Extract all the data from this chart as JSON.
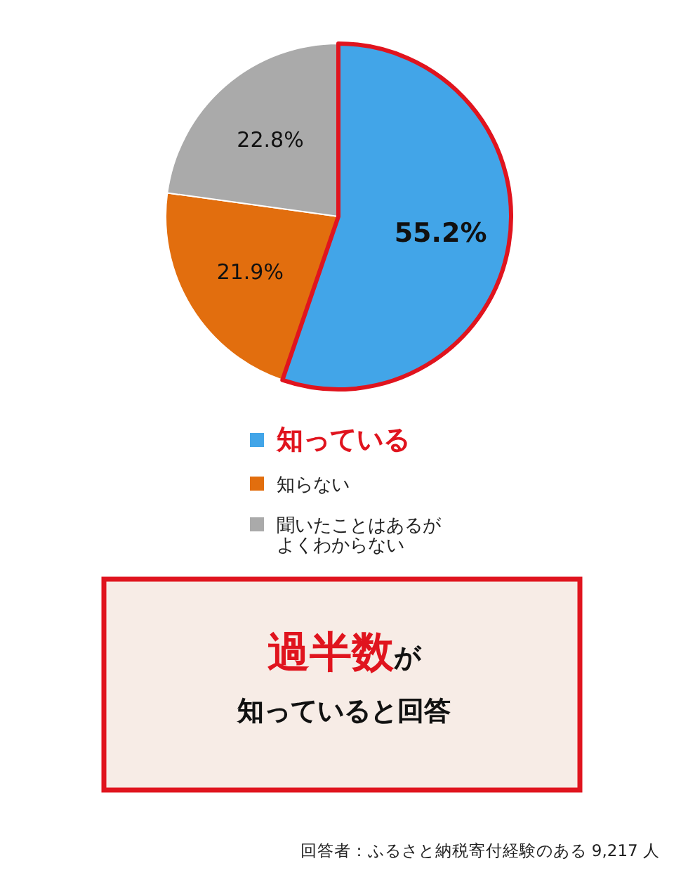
{
  "chart_data": {
    "type": "pie",
    "categories": [
      "知っている",
      "知らない",
      "聞いたことはあるがよくわからない"
    ],
    "values": [
      55.2,
      21.9,
      22.8
    ],
    "colors": [
      "#42a5e8",
      "#e26e0e",
      "#aaaaaa"
    ],
    "value_labels": [
      "55.2%",
      "21.9%",
      "22.8%"
    ],
    "legend": "bottom",
    "annotations": [
      "**過半数**が",
      "知っていると回答",
      "回答者：ふるさと納税寄付経験のある 9,217 人"
    ]
  }
}
